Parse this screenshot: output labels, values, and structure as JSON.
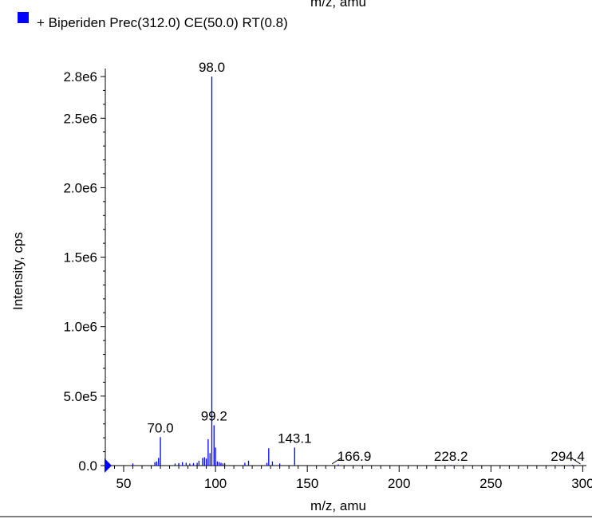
{
  "top_cut_label": "m/z, amu",
  "legend": {
    "color": "#0000ff",
    "text": "+ Biperiden Prec(312.0) CE(50.0) RT(0.8)"
  },
  "chart_data": {
    "type": "bar",
    "title": "",
    "xlabel": "m/z, amu",
    "ylabel": "Intensity, cps",
    "xlim": [
      40,
      302
    ],
    "ylim": [
      0,
      2900000
    ],
    "x_ticks": [
      50,
      100,
      150,
      200,
      250,
      300
    ],
    "x_tick_labels": [
      "50",
      "100",
      "150",
      "200",
      "250",
      "300"
    ],
    "y_ticks": [
      0,
      500000,
      1000000,
      1500000,
      2000000,
      2500000,
      2800000
    ],
    "y_tick_labels": [
      "0.0",
      "5.0e5",
      "1.0e6",
      "1.5e6",
      "2.0e6",
      "2.5e6",
      "2.8e6"
    ],
    "series_color": "#0000ff",
    "peaks": [
      {
        "mz": 55.0,
        "intensity": 15000
      },
      {
        "mz": 67.0,
        "intensity": 25000
      },
      {
        "mz": 68.0,
        "intensity": 30000
      },
      {
        "mz": 69.0,
        "intensity": 55000
      },
      {
        "mz": 70.0,
        "intensity": 205000
      },
      {
        "mz": 78.0,
        "intensity": 15000
      },
      {
        "mz": 80.0,
        "intensity": 18000
      },
      {
        "mz": 82.0,
        "intensity": 25000
      },
      {
        "mz": 84.0,
        "intensity": 20000
      },
      {
        "mz": 86.0,
        "intensity": 15000
      },
      {
        "mz": 88.0,
        "intensity": 18000
      },
      {
        "mz": 90.0,
        "intensity": 20000
      },
      {
        "mz": 91.0,
        "intensity": 35000
      },
      {
        "mz": 93.0,
        "intensity": 55000
      },
      {
        "mz": 94.0,
        "intensity": 60000
      },
      {
        "mz": 95.0,
        "intensity": 50000
      },
      {
        "mz": 96.0,
        "intensity": 190000
      },
      {
        "mz": 97.0,
        "intensity": 90000
      },
      {
        "mz": 98.0,
        "intensity": 2800000
      },
      {
        "mz": 99.2,
        "intensity": 290000
      },
      {
        "mz": 100.0,
        "intensity": 130000
      },
      {
        "mz": 101.0,
        "intensity": 30000
      },
      {
        "mz": 102.0,
        "intensity": 25000
      },
      {
        "mz": 103.0,
        "intensity": 20000
      },
      {
        "mz": 104.0,
        "intensity": 15000
      },
      {
        "mz": 105.0,
        "intensity": 18000
      },
      {
        "mz": 116.0,
        "intensity": 20000
      },
      {
        "mz": 118.0,
        "intensity": 35000
      },
      {
        "mz": 128.0,
        "intensity": 20000
      },
      {
        "mz": 129.0,
        "intensity": 125000
      },
      {
        "mz": 131.0,
        "intensity": 30000
      },
      {
        "mz": 135.0,
        "intensity": 15000
      },
      {
        "mz": 143.1,
        "intensity": 130000
      },
      {
        "mz": 166.9,
        "intensity": 8000
      },
      {
        "mz": 228.2,
        "intensity": 5000
      },
      {
        "mz": 294.4,
        "intensity": 6000
      }
    ],
    "annotations": [
      {
        "label": "98.0",
        "mz": 98.0,
        "intensity": 2800000
      },
      {
        "label": "70.0",
        "mz": 70.0,
        "intensity": 205000
      },
      {
        "label": "99.2",
        "mz": 99.2,
        "intensity": 290000
      },
      {
        "label": "143.1",
        "mz": 143.1,
        "intensity": 130000
      },
      {
        "label": "166.9",
        "mz": 166.9,
        "intensity": 8000
      },
      {
        "label": "228.2",
        "mz": 228.2,
        "intensity": 5000
      },
      {
        "label": "294.4",
        "mz": 294.4,
        "intensity": 6000
      }
    ]
  }
}
